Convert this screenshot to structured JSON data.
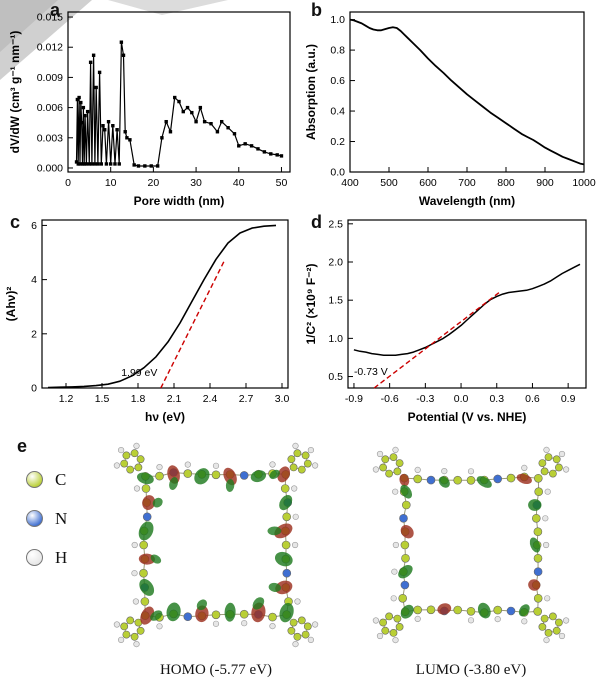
{
  "figure": {
    "panel_labels": {
      "a": "a",
      "b": "b",
      "c": "c",
      "d": "d",
      "e": "e"
    }
  },
  "chart_data": [
    {
      "id": "a",
      "type": "line-scatter",
      "xlabel": "Pore width (nm)",
      "ylabel": "dV/dW (cm³ g⁻¹ nm⁻¹)",
      "xlim": [
        0,
        52
      ],
      "ylim": [
        -0.0004,
        0.0155
      ],
      "xtick_vals": [
        0,
        10,
        20,
        30,
        40,
        50
      ],
      "xtick_labels": [
        "0",
        "10",
        "20",
        "30",
        "40",
        "50"
      ],
      "ytick_vals": [
        0,
        0.003,
        0.006,
        0.009,
        0.012,
        0.015
      ],
      "ytick_labels": [
        "0.000",
        "0.003",
        "0.006",
        "0.009",
        "0.012",
        "0.015"
      ],
      "series": [
        {
          "name": "pore-size-distribution",
          "color": "#000000",
          "width": 1.2,
          "marker": "square",
          "x": [
            2.0,
            2.2,
            2.4,
            2.6,
            2.8,
            3.0,
            3.2,
            3.4,
            3.6,
            3.8,
            4.0,
            4.3,
            4.6,
            5.0,
            5.3,
            5.6,
            6.0,
            6.3,
            6.6,
            7.0,
            7.4,
            7.8,
            8.2,
            8.6,
            9.0,
            9.5,
            10.0,
            10.5,
            11.0,
            11.5,
            12.0,
            12.5,
            13.0,
            13.4,
            13.8,
            14.5,
            15.5,
            16.5,
            18.0,
            19.5,
            21.0,
            22.0,
            23.0,
            24.0,
            25.0,
            26.0,
            27.0,
            28.0,
            29.0,
            30.0,
            31.0,
            32.0,
            33.5,
            35.0,
            36.0,
            37.5,
            39.0,
            40.0,
            41.5,
            43.0,
            44.5,
            46.0,
            47.5,
            49.0,
            50.0
          ],
          "y": [
            0.0006,
            0.0068,
            0.0004,
            0.007,
            0.0004,
            0.0065,
            0.0045,
            0.0004,
            0.006,
            0.0004,
            0.0052,
            0.0004,
            0.0056,
            0.0004,
            0.0105,
            0.0004,
            0.0112,
            0.0004,
            0.008,
            0.0004,
            0.0095,
            0.0004,
            0.0042,
            0.0038,
            0.0004,
            0.0046,
            0.0004,
            0.0042,
            0.0004,
            0.0038,
            0.0004,
            0.0125,
            0.0112,
            0.0036,
            0.003,
            0.0028,
            0.0003,
            0.0002,
            0.0002,
            0.0002,
            0.0002,
            0.003,
            0.0046,
            0.0036,
            0.007,
            0.0066,
            0.0056,
            0.006,
            0.0055,
            0.0046,
            0.006,
            0.0046,
            0.0044,
            0.0036,
            0.0046,
            0.004,
            0.0034,
            0.0022,
            0.0024,
            0.0022,
            0.0019,
            0.0016,
            0.0014,
            0.0013,
            0.0012
          ]
        }
      ],
      "annotations": []
    },
    {
      "id": "b",
      "type": "line",
      "xlabel": "Wavelength (nm)",
      "ylabel": "Absorption (a.u.)",
      "xlim": [
        400,
        1000
      ],
      "ylim": [
        0.0,
        1.05
      ],
      "xtick_vals": [
        400,
        500,
        600,
        700,
        800,
        900,
        1000
      ],
      "xtick_labels": [
        "400",
        "500",
        "600",
        "700",
        "800",
        "900",
        "1000"
      ],
      "ytick_vals": [
        0.0,
        0.2,
        0.4,
        0.6,
        0.8,
        1.0
      ],
      "ytick_labels": [
        "0.0",
        "0.2",
        "0.4",
        "0.6",
        "0.8",
        "1.0"
      ],
      "series": [
        {
          "name": "uv-vis-absorption",
          "color": "#000000",
          "width": 1.8,
          "marker": "none",
          "x": [
            400,
            410,
            420,
            430,
            440,
            450,
            460,
            470,
            480,
            490,
            500,
            510,
            520,
            530,
            540,
            550,
            560,
            580,
            600,
            620,
            640,
            660,
            680,
            700,
            720,
            740,
            760,
            780,
            800,
            820,
            840,
            855,
            870,
            885,
            900,
            915,
            930,
            945,
            960,
            975,
            990,
            1000
          ],
          "y": [
            1.0,
            0.995,
            0.985,
            0.975,
            0.96,
            0.945,
            0.935,
            0.93,
            0.93,
            0.938,
            0.945,
            0.95,
            0.945,
            0.925,
            0.9,
            0.875,
            0.85,
            0.8,
            0.745,
            0.695,
            0.65,
            0.6,
            0.555,
            0.51,
            0.47,
            0.43,
            0.39,
            0.355,
            0.32,
            0.285,
            0.25,
            0.23,
            0.21,
            0.185,
            0.16,
            0.14,
            0.12,
            0.1,
            0.085,
            0.07,
            0.055,
            0.05
          ]
        }
      ],
      "annotations": []
    },
    {
      "id": "c",
      "type": "line",
      "xlabel": "hν (eV)",
      "ylabel": "(Ahν)²",
      "xlim": [
        1.0,
        3.05
      ],
      "ylim": [
        0,
        6.2
      ],
      "xtick_vals": [
        1.2,
        1.5,
        1.8,
        2.1,
        2.4,
        2.7,
        3.0
      ],
      "xtick_labels": [
        "1.2",
        "1.5",
        "1.8",
        "2.1",
        "2.4",
        "2.7",
        "3.0"
      ],
      "ytick_vals": [
        0,
        2,
        4,
        6
      ],
      "ytick_labels": [
        "0",
        "2",
        "4",
        "6"
      ],
      "series": [
        {
          "name": "tauc-plot",
          "color": "#000000",
          "width": 1.6,
          "marker": "none",
          "x": [
            1.05,
            1.15,
            1.25,
            1.35,
            1.45,
            1.55,
            1.65,
            1.75,
            1.85,
            1.95,
            2.05,
            2.15,
            2.25,
            2.35,
            2.45,
            2.55,
            2.65,
            2.75,
            2.85,
            2.95
          ],
          "y": [
            0.02,
            0.03,
            0.04,
            0.06,
            0.09,
            0.14,
            0.25,
            0.45,
            0.75,
            1.15,
            1.7,
            2.4,
            3.2,
            4.0,
            4.75,
            5.35,
            5.72,
            5.9,
            5.97,
            6.0
          ]
        }
      ],
      "annotations": [
        {
          "type": "line",
          "x1": 1.99,
          "y1": 0.0,
          "x2": 2.52,
          "y2": 4.7,
          "color": "#cc0000"
        },
        {
          "type": "text",
          "x": 1.66,
          "y": 0.45,
          "text": "1.99 eV",
          "color": "#000000"
        }
      ]
    },
    {
      "id": "d",
      "type": "line",
      "xlabel": "Potential (V vs. NHE)",
      "ylabel": "1/C² (×10⁹ F⁻²)",
      "xlim": [
        -0.95,
        1.05
      ],
      "ylim": [
        0.35,
        2.55
      ],
      "xtick_vals": [
        -0.9,
        -0.6,
        -0.3,
        0.0,
        0.3,
        0.6,
        0.9
      ],
      "xtick_labels": [
        "-0.9",
        "-0.6",
        "-0.3",
        "0.0",
        "0.3",
        "0.6",
        "0.9"
      ],
      "ytick_vals": [
        0.5,
        1.0,
        1.5,
        2.0,
        2.5
      ],
      "ytick_labels": [
        "0.5",
        "1.0",
        "1.5",
        "2.0",
        "2.5"
      ],
      "series": [
        {
          "name": "mott-schottky",
          "color": "#000000",
          "width": 1.5,
          "marker": "none",
          "x": [
            -0.9,
            -0.85,
            -0.8,
            -0.75,
            -0.7,
            -0.65,
            -0.6,
            -0.55,
            -0.5,
            -0.45,
            -0.4,
            -0.35,
            -0.3,
            -0.25,
            -0.2,
            -0.15,
            -0.1,
            -0.05,
            0.0,
            0.05,
            0.1,
            0.15,
            0.2,
            0.25,
            0.3,
            0.35,
            0.4,
            0.45,
            0.5,
            0.55,
            0.6,
            0.65,
            0.7,
            0.75,
            0.8,
            0.85,
            0.9,
            0.95,
            1.0
          ],
          "y": [
            0.85,
            0.83,
            0.82,
            0.8,
            0.79,
            0.78,
            0.78,
            0.78,
            0.79,
            0.8,
            0.82,
            0.85,
            0.88,
            0.92,
            0.96,
            1.0,
            1.05,
            1.11,
            1.17,
            1.24,
            1.31,
            1.38,
            1.45,
            1.51,
            1.55,
            1.58,
            1.6,
            1.61,
            1.62,
            1.63,
            1.65,
            1.68,
            1.71,
            1.75,
            1.8,
            1.85,
            1.89,
            1.93,
            1.97
          ]
        }
      ],
      "annotations": [
        {
          "type": "line",
          "x1": -0.73,
          "y1": 0.35,
          "x2": 0.32,
          "y2": 1.6,
          "color": "#cc0000"
        },
        {
          "type": "text",
          "x": -0.9,
          "y": 0.52,
          "text": "-0.73 V",
          "color": "#000000"
        }
      ]
    }
  ],
  "panel_e": {
    "legend": [
      {
        "label": "C",
        "color": "#b9cf35"
      },
      {
        "label": "N",
        "color": "#3f6fd1"
      },
      {
        "label": "H",
        "color": "#e6e6e6"
      }
    ],
    "homo_caption": "HOMO (-5.77 eV)",
    "lumo_caption": "LUMO (-3.80 eV)",
    "orbital_colors": {
      "positive": "#1f7a1f",
      "negative": "#9c2f1f"
    }
  }
}
